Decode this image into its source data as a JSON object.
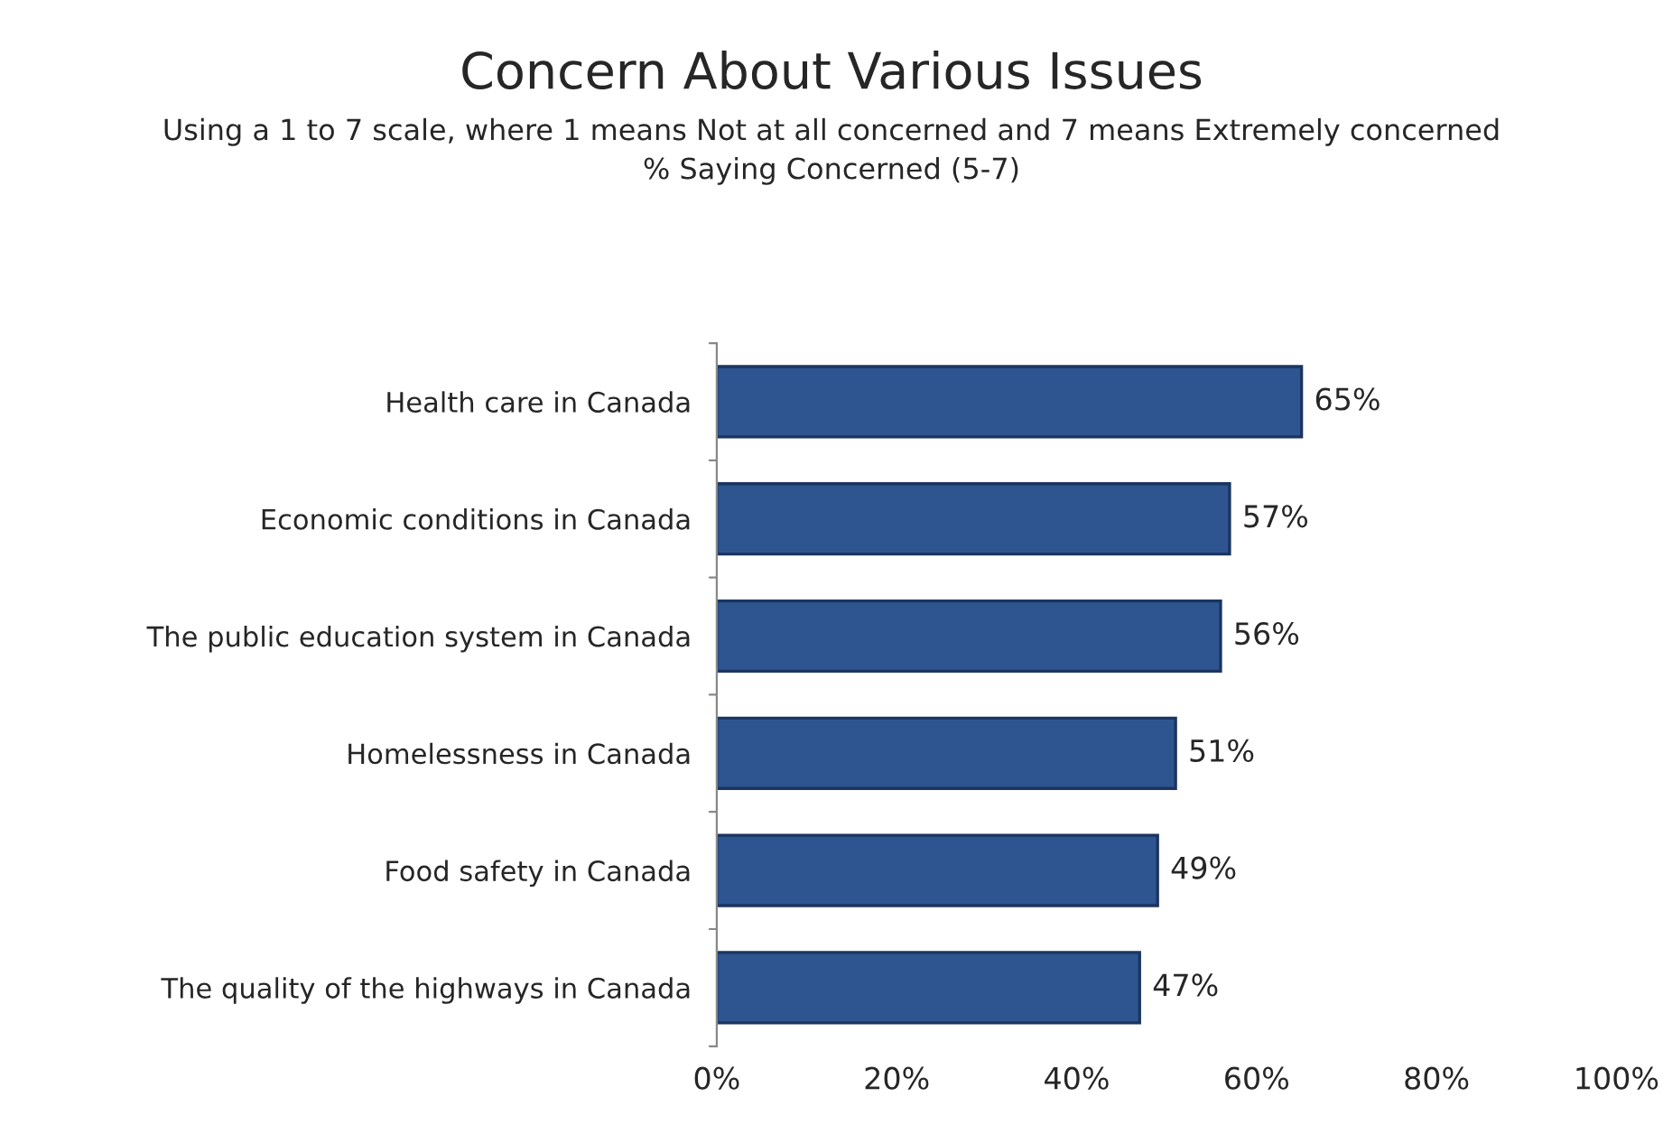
{
  "chart_data": {
    "type": "bar",
    "orientation": "horizontal",
    "title": "Concern About Various Issues",
    "subtitle": "Using a 1 to 7 scale, where 1 means Not at all concerned and 7 means Extremely concerned\n% Saying Concerned (5-7)",
    "categories": [
      "Health care in Canada",
      "Economic conditions in Canada",
      "The public education system in Canada",
      "Homelessness in Canada",
      "Food safety in Canada",
      "The quality of the highways in Canada"
    ],
    "values": [
      65,
      57,
      56,
      51,
      49,
      47
    ],
    "value_labels": [
      "65%",
      "57%",
      "56%",
      "51%",
      "49%",
      "47%"
    ],
    "color": "#2e5590",
    "xlim": [
      0,
      100
    ],
    "xticks": [
      {
        "value": 0,
        "label": "0%"
      },
      {
        "value": 20,
        "label": "20%"
      },
      {
        "value": 40,
        "label": "40%"
      },
      {
        "value": 60,
        "label": "60%"
      },
      {
        "value": 80,
        "label": "80%"
      },
      {
        "value": 100,
        "label": "100%"
      }
    ],
    "grid": false,
    "legend": false
  }
}
